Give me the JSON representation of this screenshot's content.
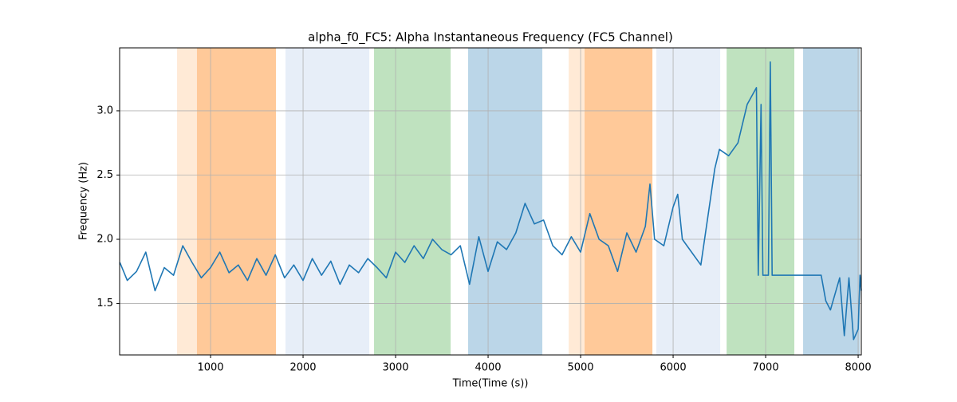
{
  "chart_data": {
    "type": "line",
    "title": "alpha_f0_FC5: Alpha Instantaneous Frequency (FC5 Channel)",
    "x_label": "Time(Time (s))",
    "y_label": "Frequency (Hz)",
    "xlim": [
      17,
      8034
    ],
    "ylim": [
      1.1,
      3.49
    ],
    "xticks": [
      1000,
      2000,
      3000,
      4000,
      5000,
      6000,
      7000,
      8000
    ],
    "yticks": [
      1.5,
      {
        "value": 2.0,
        "label": "2.0"
      },
      2.5,
      {
        "value": 3.0,
        "label": "3.0"
      }
    ],
    "grid": true,
    "spans": [
      {
        "x": [
          638,
          1707
        ],
        "color": "#ffbb78",
        "opacity": 0.3
      },
      {
        "x": [
          853,
          1707
        ],
        "color": "#ff7f0e",
        "opacity": 0.3
      },
      {
        "x": [
          1810,
          2716
        ],
        "color": "#aec7e8",
        "opacity": 0.3
      },
      {
        "x": [
          2767,
          3595
        ],
        "color": "#2ca02c",
        "opacity": 0.3
      },
      {
        "x": [
          3784,
          4586
        ],
        "color": "#1f77b4",
        "opacity": 0.3
      },
      {
        "x": [
          4871,
          5776
        ],
        "color": "#ffbb78",
        "opacity": 0.3
      },
      {
        "x": [
          5043,
          5776
        ],
        "color": "#ff7f0e",
        "opacity": 0.3
      },
      {
        "x": [
          5819,
          6509
        ],
        "color": "#aec7e8",
        "opacity": 0.3
      },
      {
        "x": [
          6578,
          7310
        ],
        "color": "#2ca02c",
        "opacity": 0.3
      },
      {
        "x": [
          7405,
          8017
        ],
        "color": "#1f77b4",
        "opacity": 0.3
      }
    ],
    "x": [
      20,
      100,
      200,
      300,
      400,
      500,
      600,
      700,
      800,
      900,
      1000,
      1100,
      1200,
      1300,
      1400,
      1500,
      1600,
      1700,
      1800,
      1900,
      2000,
      2100,
      2200,
      2300,
      2400,
      2500,
      2600,
      2700,
      2800,
      2900,
      3000,
      3100,
      3200,
      3300,
      3400,
      3500,
      3600,
      3700,
      3800,
      3900,
      4000,
      4100,
      4200,
      4300,
      4400,
      4500,
      4600,
      4700,
      4800,
      4900,
      5000,
      5100,
      5200,
      5300,
      5400,
      5500,
      5600,
      5700,
      5750,
      5800,
      5900,
      6000,
      6050,
      6100,
      6200,
      6300,
      6400,
      6450,
      6500,
      6600,
      6700,
      6800,
      6900,
      6920,
      6950,
      6970,
      7030,
      7050,
      7070,
      7200,
      7400,
      7500,
      7600,
      7650,
      7700,
      7800,
      7850,
      7900,
      7950,
      8000,
      8020,
      8034
    ],
    "series": [
      {
        "name": "alpha_f0_FC5",
        "color": "#1f77b4",
        "values": [
          1.82,
          1.68,
          1.75,
          1.9,
          1.6,
          1.78,
          1.72,
          1.95,
          1.82,
          1.7,
          1.78,
          1.9,
          1.74,
          1.8,
          1.68,
          1.85,
          1.72,
          1.88,
          1.7,
          1.8,
          1.68,
          1.85,
          1.72,
          1.83,
          1.65,
          1.8,
          1.74,
          1.85,
          1.78,
          1.7,
          1.9,
          1.82,
          1.95,
          1.85,
          2.0,
          1.92,
          1.88,
          1.95,
          1.65,
          2.02,
          1.75,
          1.98,
          1.92,
          2.05,
          2.28,
          2.12,
          2.15,
          1.95,
          1.88,
          2.02,
          1.9,
          2.2,
          2.0,
          1.95,
          1.75,
          2.05,
          1.9,
          2.1,
          2.43,
          2.0,
          1.95,
          2.25,
          2.35,
          2.0,
          1.9,
          1.8,
          2.3,
          2.55,
          2.7,
          2.65,
          2.75,
          3.05,
          3.18,
          1.72,
          3.05,
          1.72,
          1.72,
          3.38,
          1.72,
          1.72,
          1.72,
          1.72,
          1.72,
          1.52,
          1.45,
          1.7,
          1.25,
          1.7,
          1.22,
          1.3,
          1.72,
          1.6
        ]
      }
    ]
  }
}
